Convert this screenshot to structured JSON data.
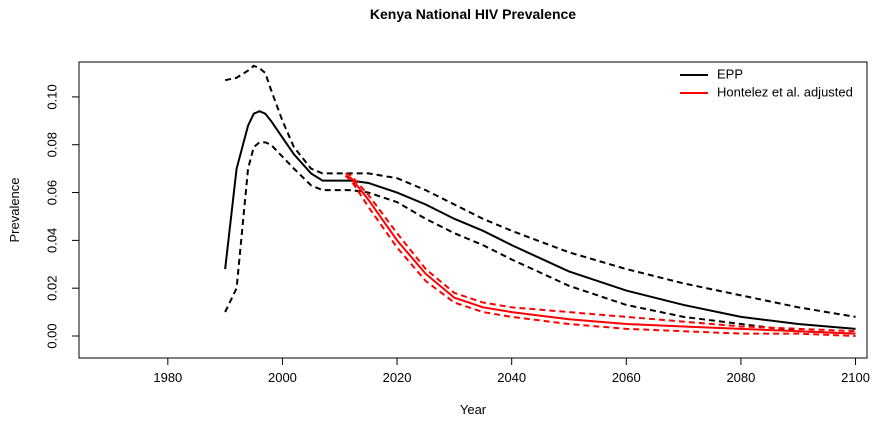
{
  "chart_data": {
    "type": "line",
    "title": "Kenya  National HIV Prevalence",
    "x_label": "Year",
    "y_label": "Prevalence",
    "x": [
      1990,
      1992,
      1994,
      1995,
      1996,
      1997,
      1998,
      2000,
      2002,
      2005,
      2007,
      2010,
      2011,
      2012,
      2015,
      2020,
      2025,
      2030,
      2035,
      2040,
      2050,
      2060,
      2070,
      2080,
      2090,
      2100
    ],
    "series": [
      {
        "name": "EPP",
        "color": "#000000",
        "values": [
          0.028,
          0.07,
          0.088,
          0.093,
          0.094,
          0.093,
          0.09,
          0.083,
          0.076,
          0.068,
          0.065,
          0.065,
          0.065,
          0.065,
          0.064,
          0.06,
          0.055,
          0.049,
          0.044,
          0.038,
          0.027,
          0.019,
          0.013,
          0.008,
          0.005,
          0.003
        ],
        "upper": [
          0.107,
          0.108,
          0.111,
          0.113,
          0.112,
          0.11,
          0.103,
          0.09,
          0.079,
          0.07,
          0.068,
          0.068,
          0.068,
          0.068,
          0.068,
          0.066,
          0.061,
          0.055,
          0.049,
          0.044,
          0.035,
          0.028,
          0.022,
          0.017,
          0.012,
          0.008
        ],
        "lower": [
          0.01,
          0.02,
          0.07,
          0.079,
          0.081,
          0.081,
          0.08,
          0.075,
          0.07,
          0.063,
          0.061,
          0.061,
          0.061,
          0.061,
          0.06,
          0.056,
          0.049,
          0.043,
          0.038,
          0.032,
          0.021,
          0.013,
          0.008,
          0.005,
          0.002,
          0.001
        ]
      },
      {
        "name": "Hontelez et al. adjusted",
        "color": "#ff0000",
        "values": [
          null,
          null,
          null,
          null,
          null,
          null,
          null,
          null,
          null,
          null,
          null,
          null,
          0.067,
          0.066,
          0.057,
          0.04,
          0.026,
          0.016,
          0.012,
          0.01,
          0.007,
          0.005,
          0.004,
          0.003,
          0.002,
          0.001
        ],
        "upper": [
          null,
          null,
          null,
          null,
          null,
          null,
          null,
          null,
          null,
          null,
          null,
          null,
          0.068,
          0.067,
          0.059,
          0.043,
          0.028,
          0.018,
          0.014,
          0.012,
          0.01,
          0.008,
          0.006,
          0.004,
          0.003,
          0.002
        ],
        "lower": [
          null,
          null,
          null,
          null,
          null,
          null,
          null,
          null,
          null,
          null,
          null,
          null,
          0.067,
          0.065,
          0.054,
          0.037,
          0.023,
          0.014,
          0.01,
          0.008,
          0.005,
          0.003,
          0.002,
          0.001,
          0.001,
          0.0
        ]
      }
    ],
    "xlim": [
      1964.5,
      2102
    ],
    "ylim": [
      -0.0092,
      0.1146
    ],
    "xticks": [
      1980,
      2000,
      2020,
      2040,
      2060,
      2080,
      2100
    ],
    "yticks": [
      {
        "value": 0,
        "label": "0.00"
      },
      {
        "value": 0.02,
        "label": "0.02"
      },
      {
        "value": 0.04,
        "label": "0.04"
      },
      {
        "value": 0.06,
        "label": "0.06"
      },
      {
        "value": 0.08,
        "label": "0.08"
      },
      {
        "value": 0.1,
        "label": "0.10"
      }
    ],
    "legend": "top-right"
  }
}
